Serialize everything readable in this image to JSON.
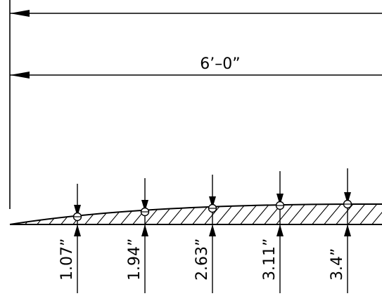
{
  "drawing": {
    "overall_dimension": "6’–0”",
    "stations": [
      {
        "label": "1.07”"
      },
      {
        "label": "1.94”"
      },
      {
        "label": "2.63”"
      },
      {
        "label": "3.11”"
      },
      {
        "label": "3.4”"
      }
    ]
  }
}
